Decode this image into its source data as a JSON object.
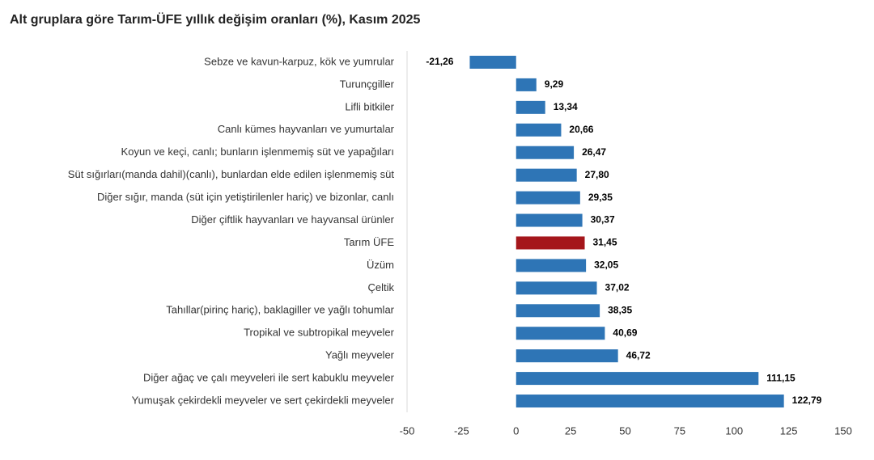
{
  "chart_data": {
    "type": "hbar",
    "title": "Alt gruplara göre Tarım-ÜFE yıllık değişim oranları (%), Kasım 2025",
    "categories": [
      "Sebze ve kavun-karpuz, kök ve yumrular",
      "Turunçgiller",
      "Lifli bitkiler",
      "Canlı kümes hayvanları ve yumurtalar",
      "Koyun ve keçi, canlı; bunların işlenmemiş süt ve yapağıları",
      "Süt sığırları(manda dahil)(canlı), bunlardan elde edilen işlenmemiş süt",
      "Diğer sığır, manda (süt için yetiştirilenler hariç) ve bizonlar, canlı",
      "Diğer çiftlik hayvanları ve hayvansal ürünler",
      "Tarım ÜFE",
      "Üzüm",
      "Çeltik",
      "Tahıllar(pirinç hariç), baklagiller ve yağlı tohumlar",
      "Tropikal ve subtropikal meyveler",
      "Yağlı meyveler",
      "Diğer ağaç ve çalı meyveleri ile sert kabuklu meyveler",
      "Yumuşak çekirdekli meyveler ve sert çekirdekli meyveler"
    ],
    "values": [
      -21.26,
      9.29,
      13.34,
      20.66,
      26.47,
      27.8,
      29.35,
      30.37,
      31.45,
      32.05,
      37.02,
      38.35,
      40.69,
      46.72,
      111.15,
      122.79
    ],
    "value_labels": [
      "-21,26",
      "9,29",
      "13,34",
      "20,66",
      "26,47",
      "27,80",
      "29,35",
      "30,37",
      "31,45",
      "32,05",
      "37,02",
      "38,35",
      "40,69",
      "46,72",
      "111,15",
      "122,79"
    ],
    "colors": [
      "#2e75b6",
      "#2e75b6",
      "#2e75b6",
      "#2e75b6",
      "#2e75b6",
      "#2e75b6",
      "#2e75b6",
      "#2e75b6",
      "#a5161b",
      "#2e75b6",
      "#2e75b6",
      "#2e75b6",
      "#2e75b6",
      "#2e75b6",
      "#2e75b6",
      "#2e75b6"
    ],
    "xlim": [
      -50,
      150
    ],
    "xticks": [
      -50,
      -25,
      0,
      25,
      50,
      75,
      100,
      125,
      150
    ],
    "grid": false
  }
}
